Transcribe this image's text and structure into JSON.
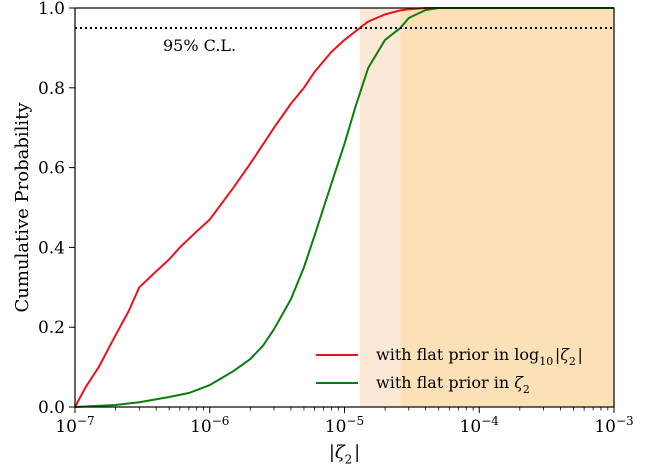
{
  "chart_data": {
    "type": "line",
    "xscale": "log",
    "xlim": [
      1e-07,
      0.001
    ],
    "ylim": [
      0.0,
      1.0
    ],
    "xlabel": "|ζ2|",
    "ylabel": "Cumulative Probability",
    "x_ticks": [
      1e-07,
      1e-06,
      1e-05,
      0.0001,
      0.001
    ],
    "y_ticks": [
      0.0,
      0.2,
      0.4,
      0.6,
      0.8,
      1.0
    ],
    "x_tick_labels": [
      "10−7",
      "10−6",
      "10−5",
      "10−4",
      "10−3"
    ],
    "y_tick_labels": [
      "0.0",
      "0.2",
      "0.4",
      "0.6",
      "0.8",
      "1.0"
    ],
    "confidence_line": {
      "y": 0.95,
      "label": "95% C.L.",
      "style": "dotted",
      "color": "#000000"
    },
    "excluded_regions": [
      {
        "x_from": 1.3e-05,
        "x_to": 0.001,
        "color": "#fbe9d6"
      },
      {
        "x_from": 2.6e-05,
        "x_to": 0.001,
        "color": "#fce0b7"
      }
    ],
    "series": [
      {
        "name": "with flat prior in log10|ζ2|",
        "color": "#e8141c",
        "x": [
          1e-07,
          1.2e-07,
          1.5e-07,
          2e-07,
          2.5e-07,
          3e-07,
          4e-07,
          5e-07,
          6e-07,
          8e-07,
          1e-06,
          1.5e-06,
          2e-06,
          3e-06,
          4e-06,
          5e-06,
          6e-06,
          8e-06,
          1e-05,
          1.3e-05,
          1.5e-05,
          2e-05,
          2.6e-05,
          3e-05,
          4e-05,
          5e-05,
          7e-05,
          0.0001,
          0.001
        ],
        "y": [
          0.0,
          0.05,
          0.1,
          0.18,
          0.24,
          0.3,
          0.34,
          0.37,
          0.4,
          0.44,
          0.47,
          0.55,
          0.61,
          0.7,
          0.76,
          0.8,
          0.84,
          0.89,
          0.92,
          0.95,
          0.966,
          0.984,
          0.994,
          0.997,
          1.0,
          1.0,
          1.0,
          1.0,
          1.0
        ]
      },
      {
        "name": "with flat prior in ζ2",
        "color": "#0b7d0b",
        "x": [
          1e-07,
          2e-07,
          3e-07,
          5e-07,
          7e-07,
          1e-06,
          1.5e-06,
          2e-06,
          2.5e-06,
          3e-06,
          4e-06,
          5e-06,
          6e-06,
          7e-06,
          8e-06,
          1e-05,
          1.2e-05,
          1.5e-05,
          2e-05,
          2.6e-05,
          3e-05,
          4e-05,
          5e-05,
          7e-05,
          0.0001,
          0.001
        ],
        "y": [
          0.0,
          0.005,
          0.012,
          0.025,
          0.035,
          0.055,
          0.09,
          0.12,
          0.155,
          0.195,
          0.27,
          0.35,
          0.43,
          0.5,
          0.56,
          0.66,
          0.75,
          0.85,
          0.92,
          0.95,
          0.975,
          0.995,
          1.0,
          1.0,
          1.0,
          1.0
        ]
      }
    ],
    "legend": {
      "location": "lower-right",
      "entries": [
        {
          "label": "with flat prior in log10|ζ2|",
          "color": "#e8141c"
        },
        {
          "label": "with flat prior in ζ2",
          "color": "#0b7d0b"
        }
      ]
    },
    "grid": false
  }
}
